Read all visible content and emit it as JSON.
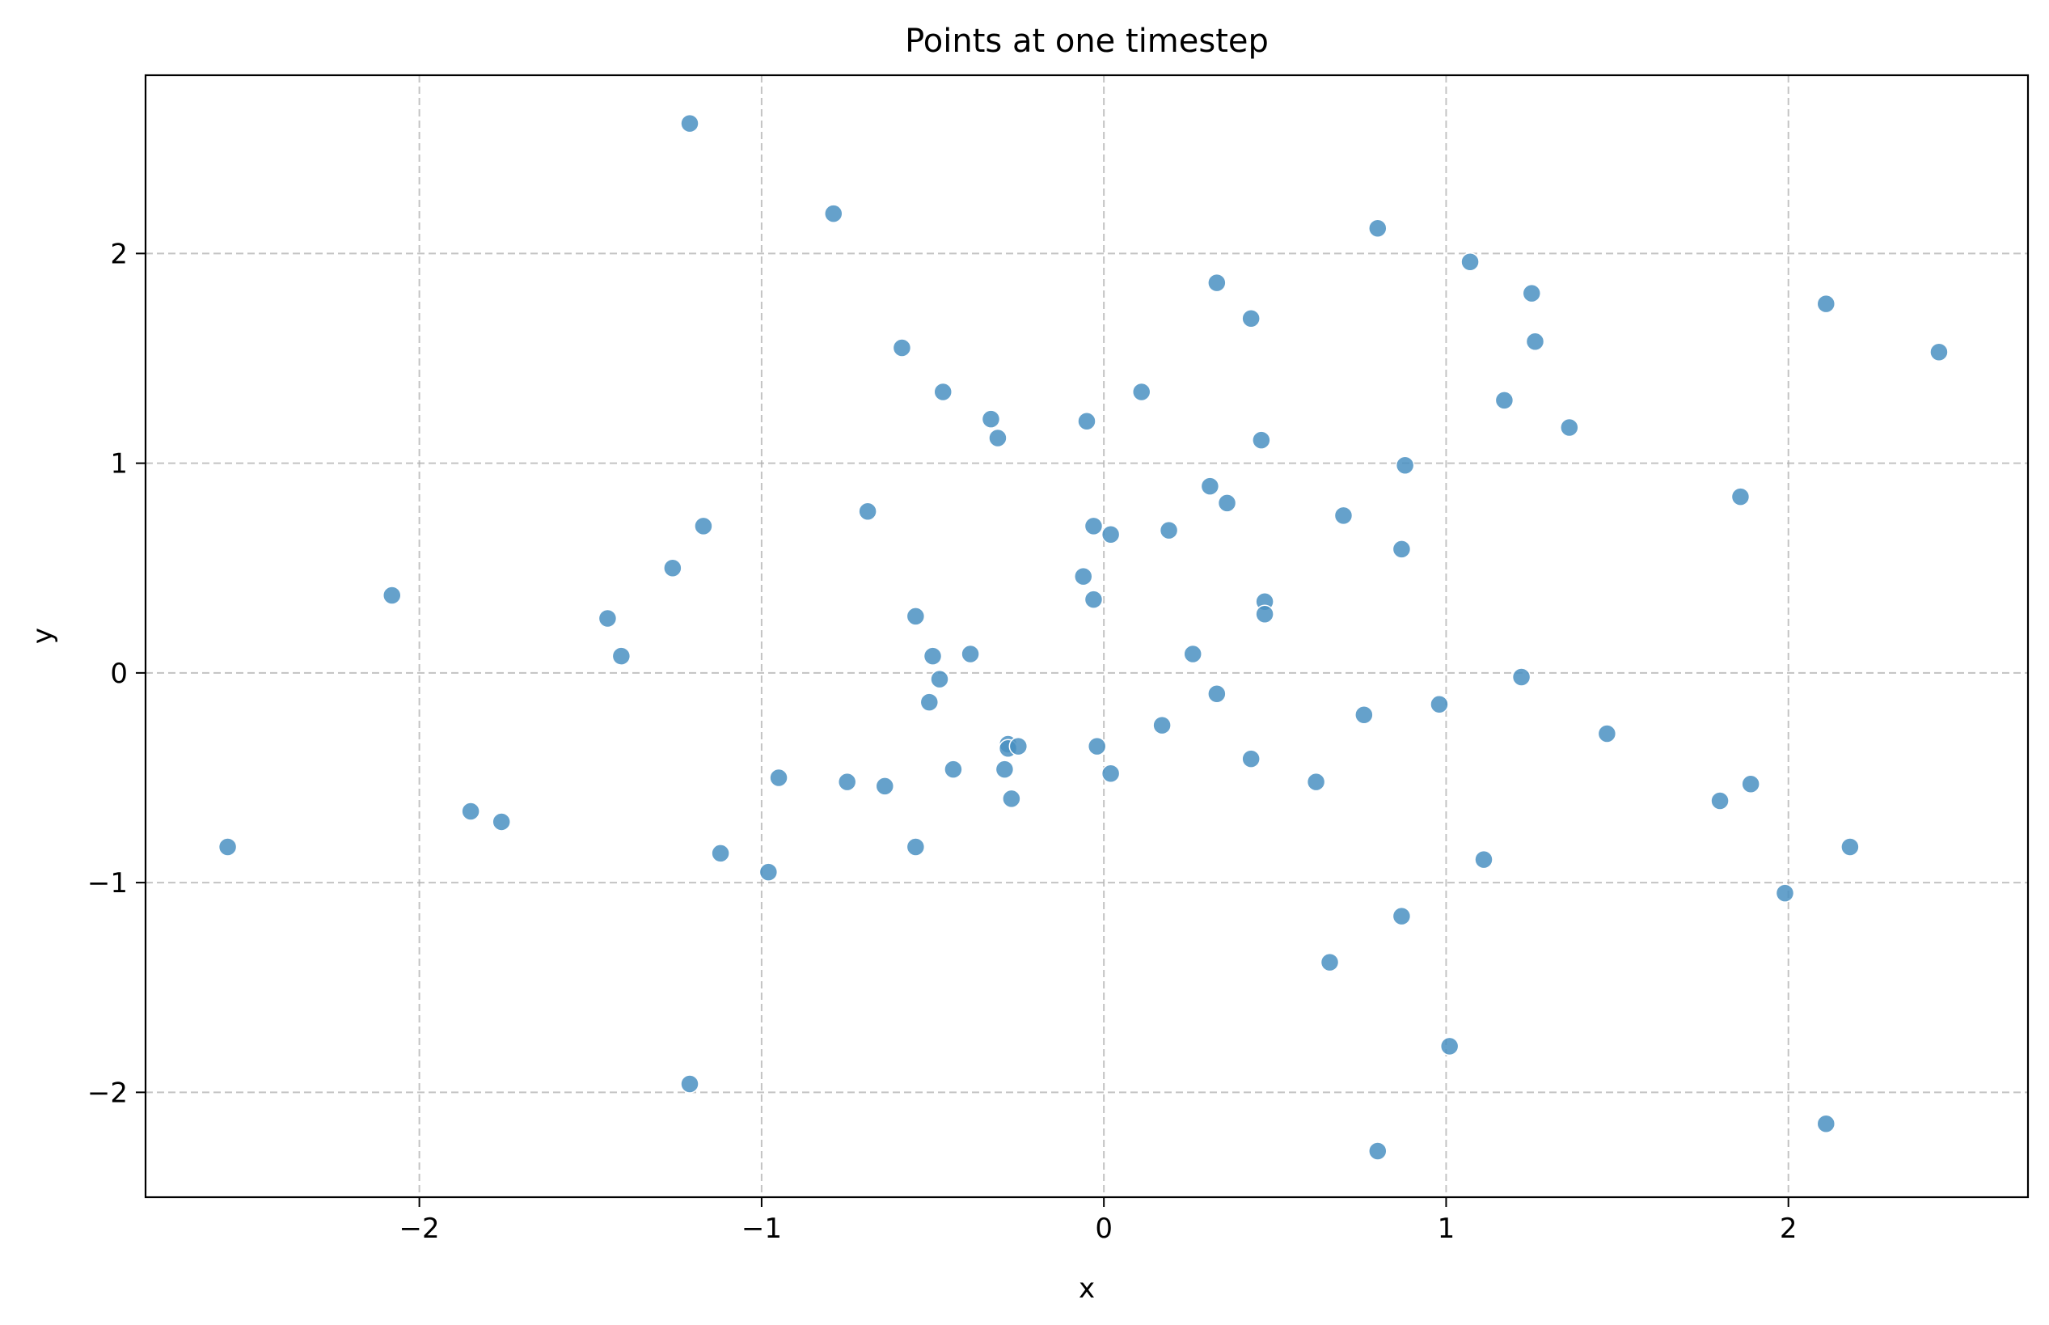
{
  "chart_data": {
    "type": "scatter",
    "title": "Points at one timestep",
    "xlabel": "x",
    "ylabel": "y",
    "xlim": [
      -2.8,
      2.7
    ],
    "ylim": [
      -2.5,
      2.85
    ],
    "xticks": [
      -2,
      -1,
      0,
      1,
      2
    ],
    "yticks": [
      -2,
      -1,
      0,
      1,
      2
    ],
    "xtick_labels": [
      "−2",
      "−1",
      "0",
      "1",
      "2"
    ],
    "ytick_labels": [
      "−2",
      "−1",
      "0",
      "1",
      "2"
    ],
    "grid": true,
    "marker_color": "#4a90c2",
    "marker_edge_color": "#ffffff",
    "marker_opacity": 0.85,
    "points": [
      {
        "x": -2.56,
        "y": -0.83
      },
      {
        "x": -2.08,
        "y": 0.37
      },
      {
        "x": -1.85,
        "y": -0.66
      },
      {
        "x": -1.76,
        "y": -0.71
      },
      {
        "x": -1.45,
        "y": 0.26
      },
      {
        "x": -1.41,
        "y": 0.08
      },
      {
        "x": -1.26,
        "y": 0.5
      },
      {
        "x": -1.21,
        "y": 2.62
      },
      {
        "x": -1.21,
        "y": -1.96
      },
      {
        "x": -1.17,
        "y": 0.7
      },
      {
        "x": -1.12,
        "y": -0.86
      },
      {
        "x": -0.98,
        "y": -0.95
      },
      {
        "x": -0.95,
        "y": -0.5
      },
      {
        "x": -0.79,
        "y": 2.19
      },
      {
        "x": -0.75,
        "y": -0.52
      },
      {
        "x": -0.69,
        "y": 0.77
      },
      {
        "x": -0.64,
        "y": -0.54
      },
      {
        "x": -0.59,
        "y": 1.55
      },
      {
        "x": -0.55,
        "y": 0.27
      },
      {
        "x": -0.55,
        "y": -0.83
      },
      {
        "x": -0.51,
        "y": -0.14
      },
      {
        "x": -0.5,
        "y": 0.08
      },
      {
        "x": -0.48,
        "y": -0.03
      },
      {
        "x": -0.47,
        "y": 1.34
      },
      {
        "x": -0.44,
        "y": -0.46
      },
      {
        "x": -0.39,
        "y": 0.09
      },
      {
        "x": -0.33,
        "y": 1.21
      },
      {
        "x": -0.31,
        "y": 1.12
      },
      {
        "x": -0.29,
        "y": -0.46
      },
      {
        "x": -0.28,
        "y": -0.34
      },
      {
        "x": -0.28,
        "y": -0.36
      },
      {
        "x": -0.27,
        "y": -0.6
      },
      {
        "x": -0.25,
        "y": -0.35
      },
      {
        "x": -0.06,
        "y": 0.46
      },
      {
        "x": -0.05,
        "y": 1.2
      },
      {
        "x": -0.03,
        "y": 0.7
      },
      {
        "x": -0.03,
        "y": 0.35
      },
      {
        "x": -0.02,
        "y": -0.35
      },
      {
        "x": 0.02,
        "y": 0.66
      },
      {
        "x": 0.02,
        "y": -0.48
      },
      {
        "x": 0.11,
        "y": 1.34
      },
      {
        "x": 0.17,
        "y": -0.25
      },
      {
        "x": 0.19,
        "y": 0.68
      },
      {
        "x": 0.26,
        "y": 0.09
      },
      {
        "x": 0.31,
        "y": 0.89
      },
      {
        "x": 0.33,
        "y": 1.86
      },
      {
        "x": 0.33,
        "y": -0.1
      },
      {
        "x": 0.36,
        "y": 0.81
      },
      {
        "x": 0.43,
        "y": 1.69
      },
      {
        "x": 0.43,
        "y": -0.41
      },
      {
        "x": 0.46,
        "y": 1.11
      },
      {
        "x": 0.47,
        "y": 0.34
      },
      {
        "x": 0.47,
        "y": 0.28
      },
      {
        "x": 0.62,
        "y": -0.52
      },
      {
        "x": 0.66,
        "y": -1.38
      },
      {
        "x": 0.7,
        "y": 0.75
      },
      {
        "x": 0.76,
        "y": -0.2
      },
      {
        "x": 0.8,
        "y": 2.12
      },
      {
        "x": 0.8,
        "y": -2.28
      },
      {
        "x": 0.87,
        "y": 0.59
      },
      {
        "x": 0.87,
        "y": -1.16
      },
      {
        "x": 0.88,
        "y": 0.99
      },
      {
        "x": 0.98,
        "y": -0.15
      },
      {
        "x": 1.01,
        "y": -1.78
      },
      {
        "x": 1.07,
        "y": 1.96
      },
      {
        "x": 1.11,
        "y": -0.89
      },
      {
        "x": 1.17,
        "y": 1.3
      },
      {
        "x": 1.22,
        "y": -0.02
      },
      {
        "x": 1.25,
        "y": 1.81
      },
      {
        "x": 1.26,
        "y": 1.58
      },
      {
        "x": 1.36,
        "y": 1.17
      },
      {
        "x": 1.47,
        "y": -0.29
      },
      {
        "x": 1.8,
        "y": -0.61
      },
      {
        "x": 1.86,
        "y": 0.84
      },
      {
        "x": 1.89,
        "y": -0.53
      },
      {
        "x": 1.99,
        "y": -1.05
      },
      {
        "x": 2.11,
        "y": 1.76
      },
      {
        "x": 2.11,
        "y": -2.15
      },
      {
        "x": 2.18,
        "y": -0.83
      },
      {
        "x": 2.44,
        "y": 1.53
      }
    ]
  }
}
